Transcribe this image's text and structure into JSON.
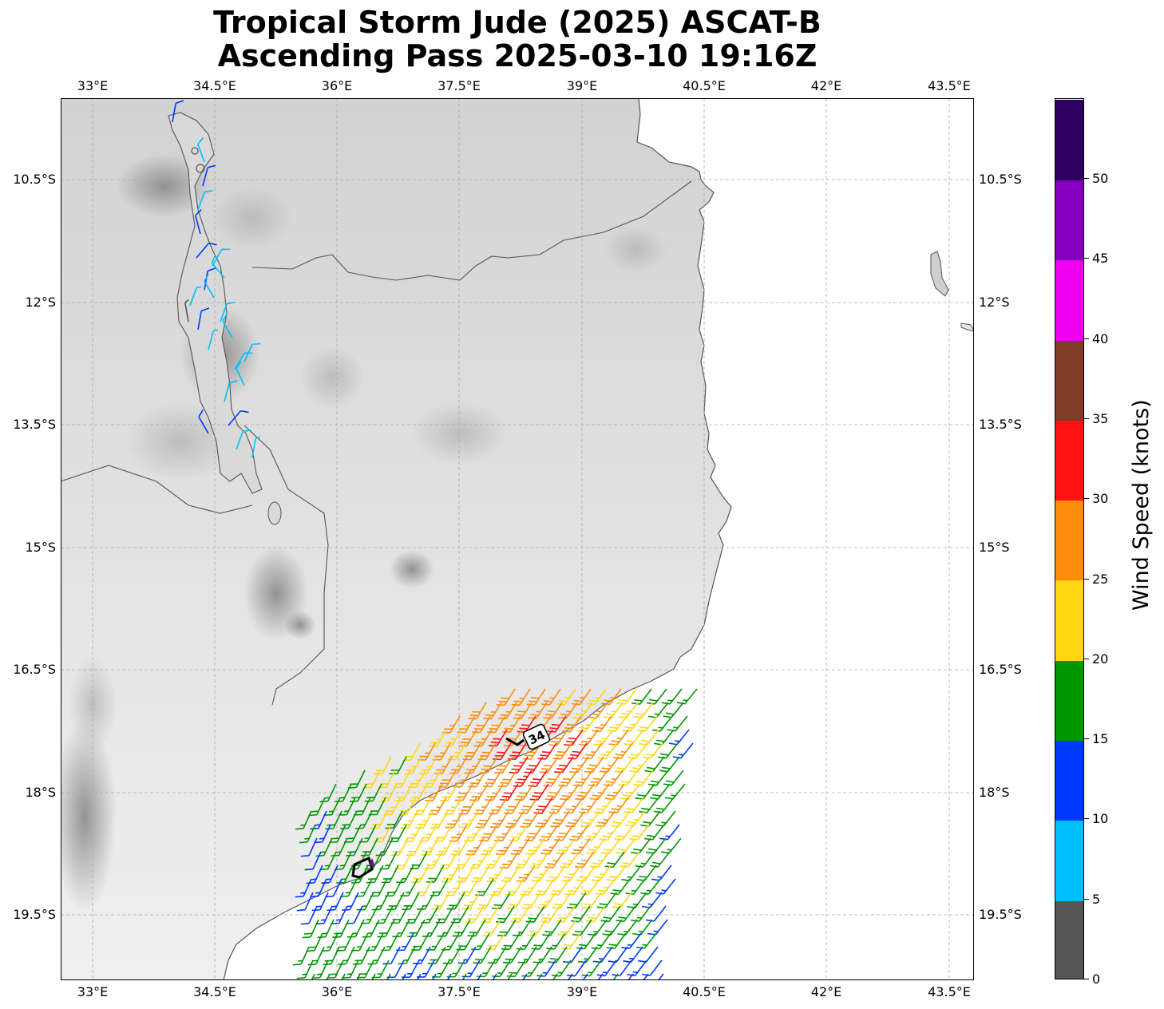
{
  "title": {
    "line1": "Tropical Storm Jude (2025) ASCAT-B",
    "line2": "Ascending Pass 2025-03-10 19:16Z"
  },
  "map": {
    "lon_ticks": [
      "33°E",
      "34.5°E",
      "36°E",
      "37.5°E",
      "39°E",
      "40.5°E",
      "42°E",
      "43.5°E"
    ],
    "lat_ticks": [
      "10.5°S",
      "12°S",
      "13.5°S",
      "15°S",
      "16.5°S",
      "18°S",
      "19.5°S"
    ],
    "storm_label": "34",
    "gridlines": true,
    "basemap": "grayscale-terrain"
  },
  "colorbar": {
    "label": "Wind Speed (knots)",
    "ticks": [
      "0",
      "5",
      "10",
      "15",
      "20",
      "25",
      "30",
      "35",
      "40",
      "45",
      "50"
    ],
    "colors": [
      "#555555",
      "#00bfff",
      "#0039ff",
      "#009600",
      "#ffd712",
      "#ff8c0a",
      "#ff1212",
      "#823c28",
      "#f000f0",
      "#8200be",
      "#2d005f"
    ]
  }
}
